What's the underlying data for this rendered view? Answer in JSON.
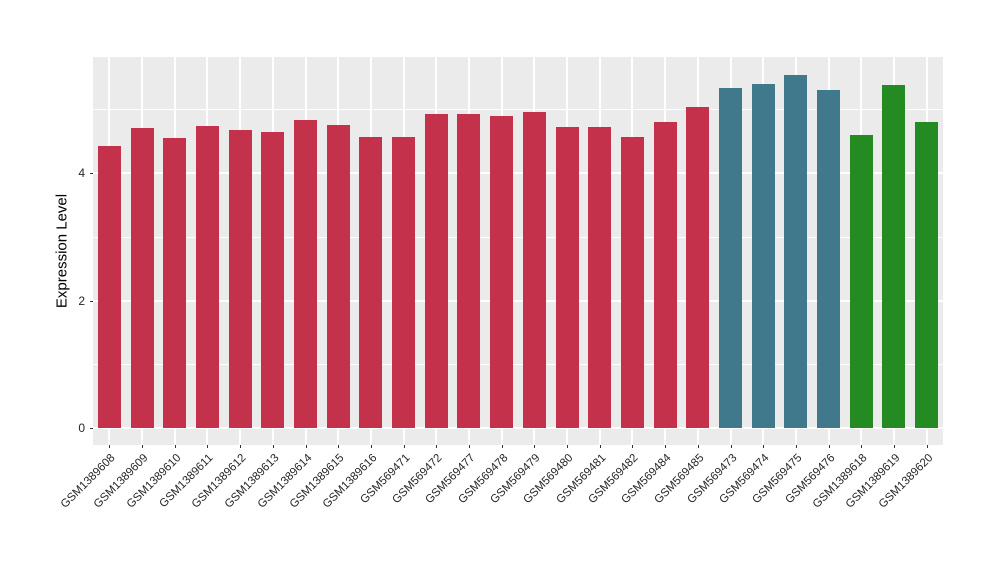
{
  "chart": {
    "ylabel": "Expression Level",
    "y_tick_labels": [
      "0",
      "2",
      "4"
    ]
  },
  "chart_data": {
    "type": "bar",
    "title": "",
    "xlabel": "",
    "ylabel": "Expression Level",
    "categories": [
      "GSM1389608",
      "GSM1389609",
      "GSM1389610",
      "GSM1389611",
      "GSM1389612",
      "GSM1389613",
      "GSM1389614",
      "GSM1389615",
      "GSM1389616",
      "GSM569471",
      "GSM569472",
      "GSM569477",
      "GSM569478",
      "GSM569479",
      "GSM569480",
      "GSM569481",
      "GSM569482",
      "GSM569484",
      "GSM569485",
      "GSM569473",
      "GSM569474",
      "GSM569475",
      "GSM569476",
      "GSM1389618",
      "GSM1389619",
      "GSM1389620"
    ],
    "values": [
      4.42,
      4.7,
      4.55,
      4.73,
      4.67,
      4.65,
      4.83,
      4.75,
      4.56,
      4.56,
      4.93,
      4.92,
      4.9,
      4.95,
      4.72,
      4.72,
      4.56,
      4.8,
      5.03,
      5.34,
      5.39,
      5.54,
      5.3,
      4.6,
      5.38,
      4.8
    ],
    "bar_groups": [
      "crimson",
      "crimson",
      "crimson",
      "crimson",
      "crimson",
      "crimson",
      "crimson",
      "crimson",
      "crimson",
      "crimson",
      "crimson",
      "crimson",
      "crimson",
      "crimson",
      "crimson",
      "crimson",
      "crimson",
      "crimson",
      "crimson",
      "teal",
      "teal",
      "teal",
      "teal",
      "green",
      "green",
      "green"
    ],
    "group_colors": {
      "crimson": "#C4314B",
      "teal": "#41798C",
      "green": "#238B22"
    },
    "yticks": [
      0,
      2,
      4
    ],
    "minor_gridlines": [
      1,
      3,
      5
    ],
    "ylim": [
      -0.27,
      5.81
    ],
    "grid": true,
    "legend_position": "none",
    "panel_background": "#EBEBEB",
    "gridline_color": "#FFFFFF"
  }
}
